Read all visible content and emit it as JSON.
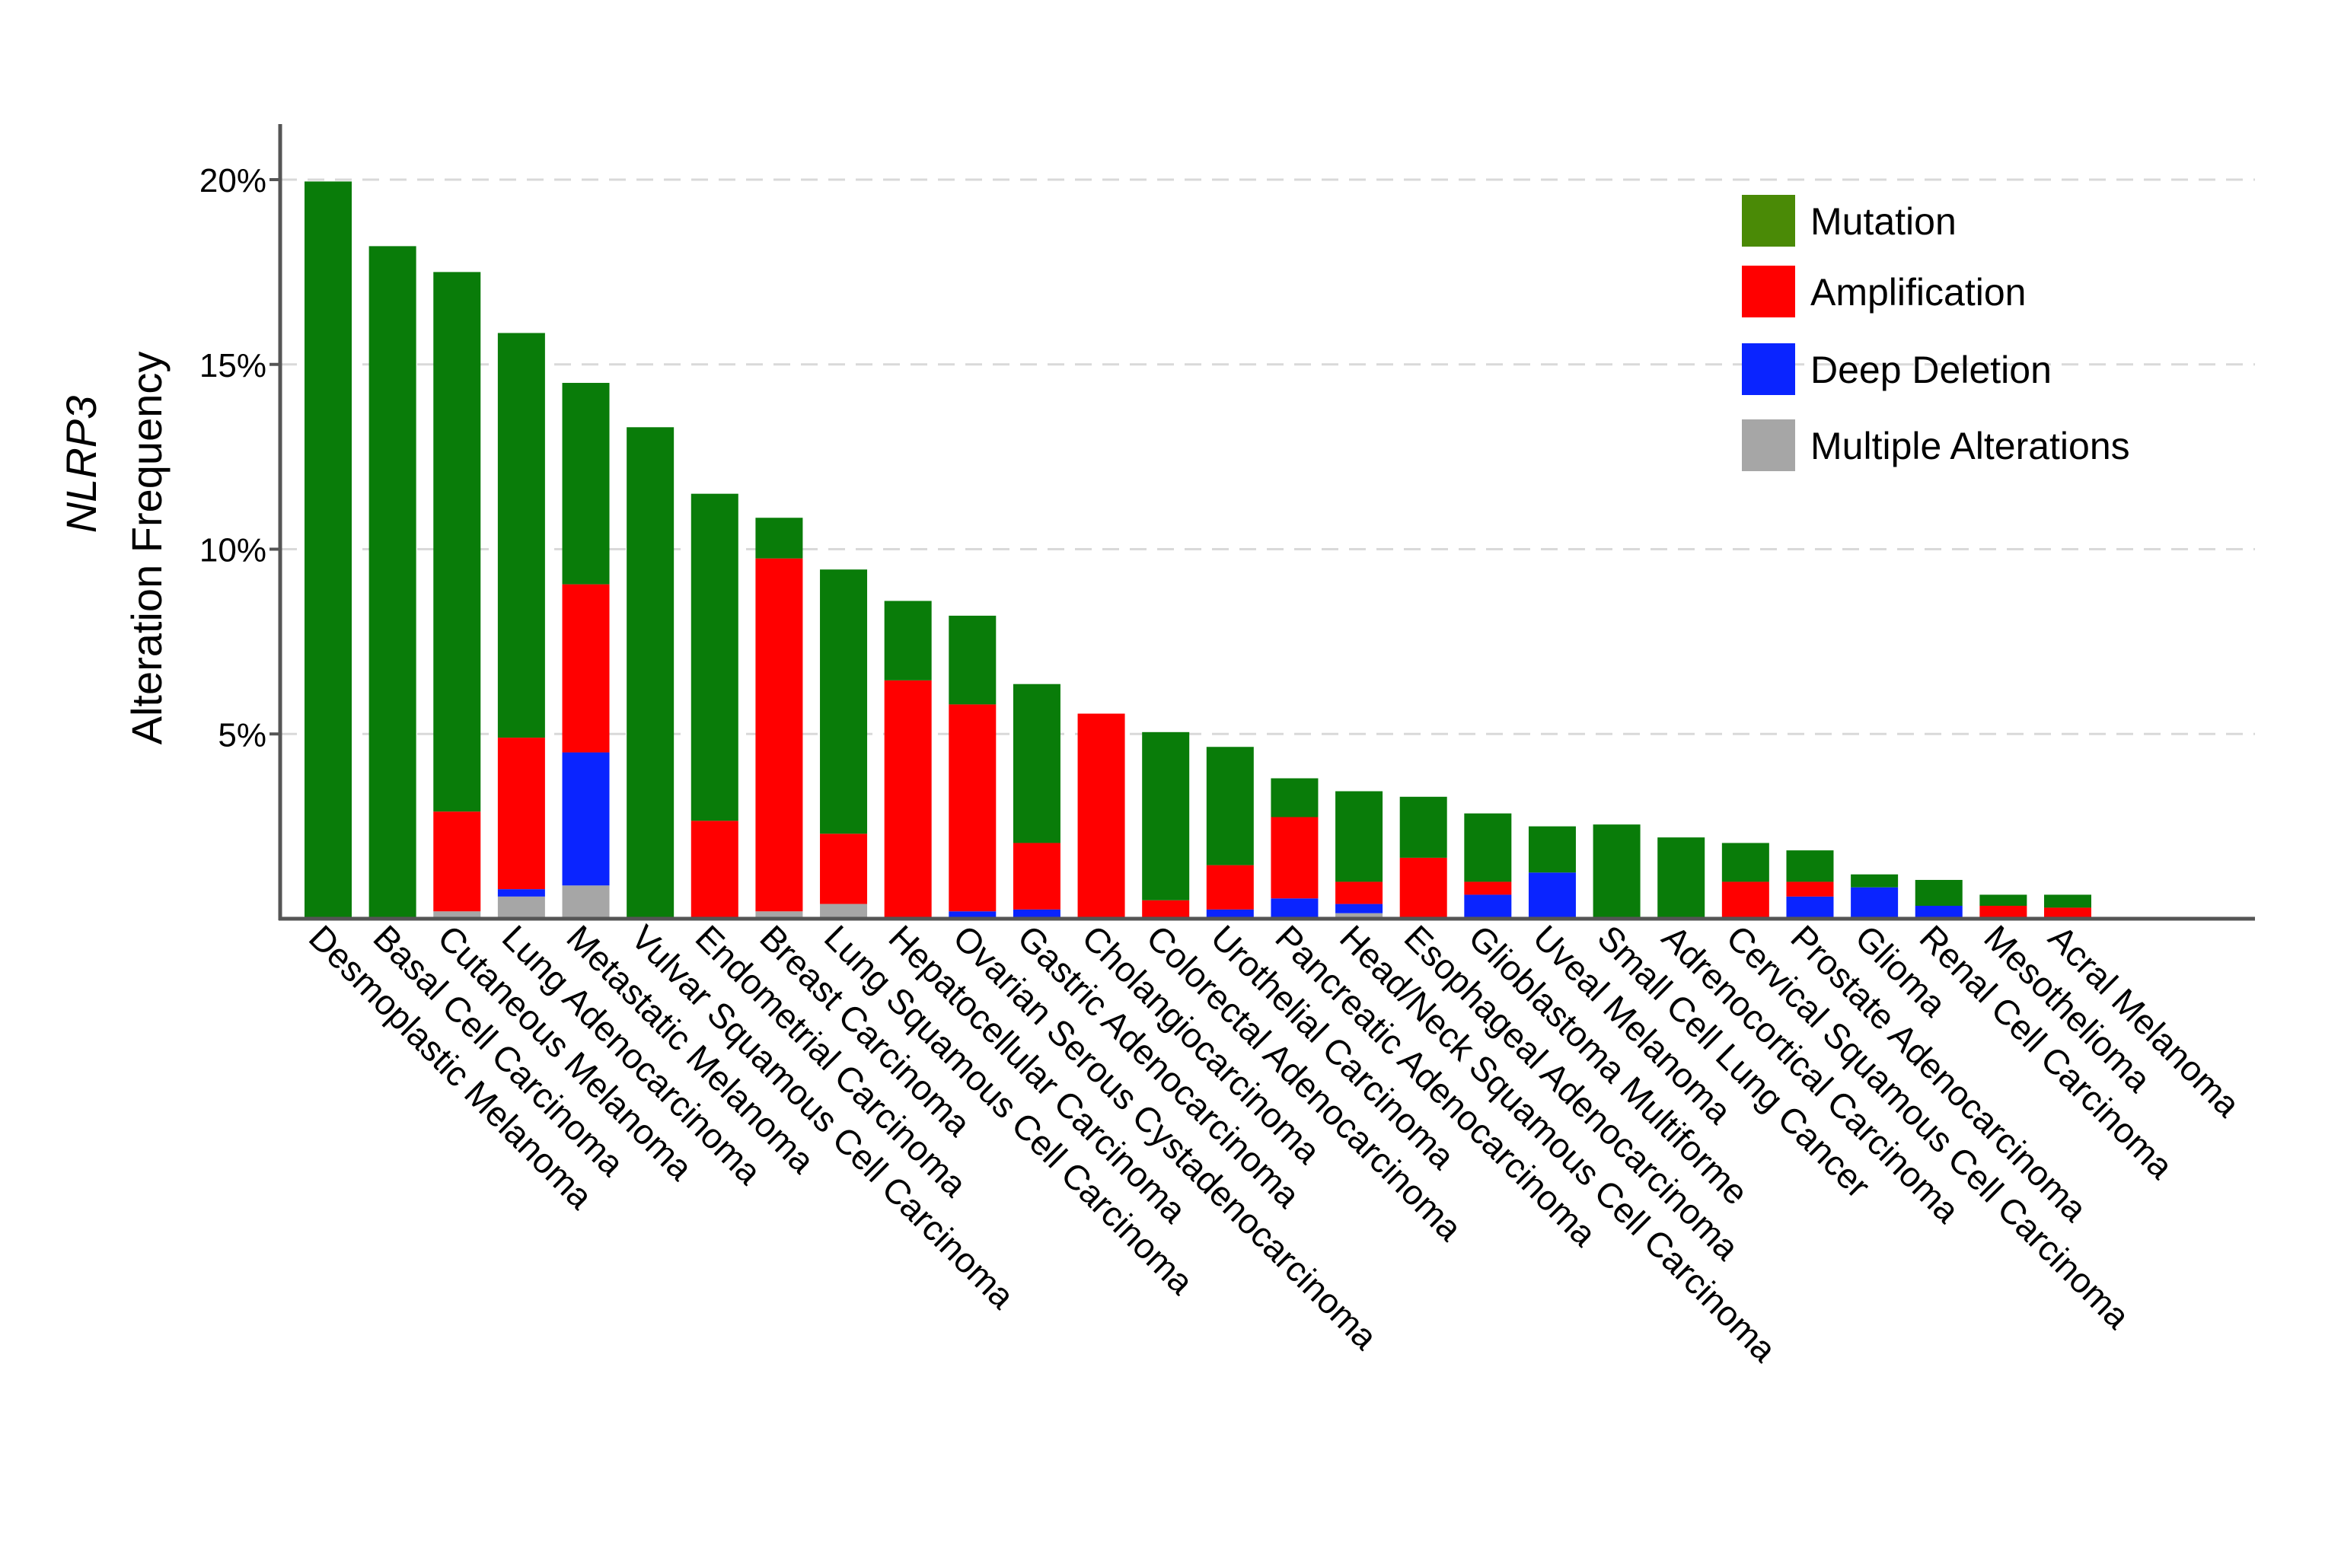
{
  "chart_data": {
    "type": "bar",
    "stacked": true,
    "ylabel_gene": "NLRP3",
    "ylabel": "Alteration Frequency",
    "xlabel": "",
    "ylim": [
      0,
      20
    ],
    "yticks": [
      "5%",
      "10%",
      "15%",
      "20%"
    ],
    "ytick_values": [
      5,
      10,
      15,
      20
    ],
    "grid": "horizontal dashed",
    "legend_position": "top-right",
    "categories": [
      "Desmoplastic Melanoma",
      "Basal Cell Carcinoma",
      "Cutaneous Melanoma",
      "Lung Adenocarcinoma",
      "Metastatic Melanoma",
      "Vulvar Squamous Cell Carcinoma",
      "Endometrial Carcinoma",
      "Breast Carcinoma",
      "Lung Squamous Cell Carcinoma",
      "Hepatocellular Carcinoma",
      "Ovarian Serous Cystadenocarcinoma",
      "Gastric Adenocarcinoma",
      "Cholangiocarcinoma",
      "Colorectal Adenocarcinoma",
      "Urothelial Carcinoma",
      "Pancreatic Adenocarcinoma",
      "Head/Neck Squamous Cell Carcinoma",
      "Esophageal Adenocarcinoma",
      "Glioblastoma Multiforme",
      "Uveal Melanoma",
      "Small Cell Lung Cancer",
      "Adrenocortical Carcinoma",
      "Cervical Squamous Cell Carcinoma",
      "Prostate Adenocarcinoma",
      "Glioma",
      "Renal Cell Carcinoma",
      "Mesothelioma",
      "Acral Melanoma"
    ],
    "series": [
      {
        "name": "Multiple Alterations",
        "color": "#a6a6a6",
        "values": [
          0,
          0,
          0.2,
          0.6,
          0.9,
          0,
          0,
          0.2,
          0.4,
          0,
          0,
          0,
          0,
          0,
          0,
          0,
          0.15,
          0,
          0,
          0,
          0,
          0,
          0,
          0,
          0,
          0,
          0,
          0
        ]
      },
      {
        "name": "Deep Deletion",
        "color": "#0a24ff",
        "values": [
          0,
          0,
          0,
          0.2,
          3.6,
          0,
          0,
          0,
          0,
          0,
          0.2,
          0.25,
          0,
          0,
          0.25,
          0.55,
          0.25,
          0,
          0.65,
          1.25,
          0,
          0,
          0,
          0.6,
          0.85,
          0.35,
          0,
          0
        ]
      },
      {
        "name": "Amplification",
        "color": "#ff0000",
        "values": [
          0,
          0,
          2.7,
          4.1,
          4.55,
          0,
          2.65,
          9.55,
          1.9,
          6.45,
          5.6,
          1.8,
          5.55,
          0.5,
          1.2,
          2.2,
          0.6,
          1.65,
          0.35,
          0,
          0,
          0,
          1.0,
          0.4,
          0,
          0,
          0.35,
          0.3
        ]
      },
      {
        "name": "Mutation",
        "color": "#097c09",
        "values": [
          19.95,
          18.2,
          14.6,
          10.95,
          5.45,
          13.3,
          8.85,
          1.1,
          7.15,
          2.15,
          2.4,
          4.3,
          0,
          4.55,
          3.2,
          1.05,
          2.45,
          1.65,
          1.85,
          1.25,
          2.55,
          2.2,
          1.05,
          0.85,
          0.35,
          0.7,
          0.3,
          0.35
        ]
      }
    ],
    "legend": [
      {
        "label": "Mutation",
        "color": "#4a8a06"
      },
      {
        "label": "Amplification",
        "color": "#ff0000"
      },
      {
        "label": "Deep Deletion",
        "color": "#0a24ff"
      },
      {
        "label": "Multiple Alterations",
        "color": "#a6a6a6"
      }
    ]
  }
}
